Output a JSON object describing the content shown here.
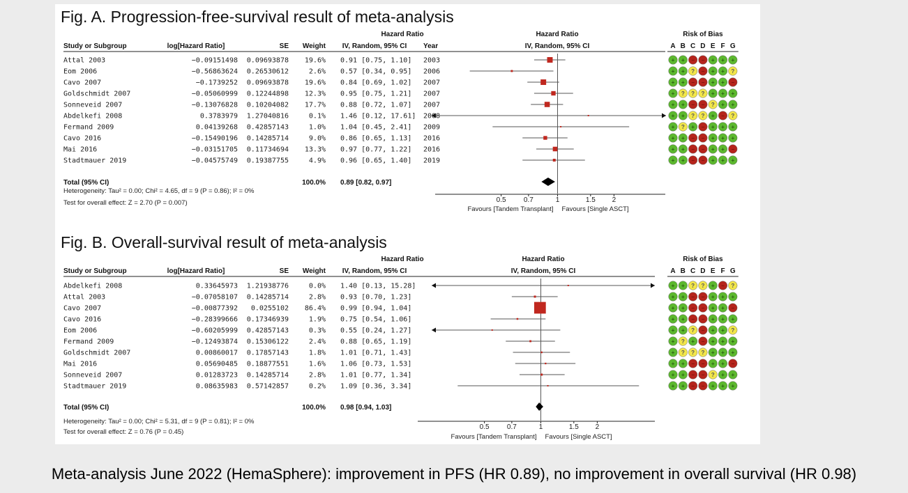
{
  "caption": "Meta-analysis June 2022 (HemaSphere): improvement in PFS (HR 0.89), no improvement in overall survival (HR 0.98)",
  "headers": {
    "study": "Study or Subgroup",
    "loghr": "log[Hazard Ratio]",
    "se": "SE",
    "weight": "Weight",
    "hr_top": "Hazard Ratio",
    "hr_method": "IV, Random, 95% CI",
    "year": "Year",
    "plot_top": "Hazard Ratio",
    "plot_method": "IV, Random, 95% CI",
    "bias_title": "Risk of Bias",
    "bias_letters": [
      "A",
      "B",
      "C",
      "D",
      "E",
      "F",
      "G"
    ]
  },
  "colors": {
    "low": "#5cb82e",
    "unclear": "#f2e64a",
    "high": "#b5241c",
    "marker": "#c0281f",
    "line": "#555555"
  },
  "chart_data": [
    {
      "type": "forest",
      "title": "Fig. A. Progression-free-survival result of meta-analysis",
      "has_year": true,
      "axis": {
        "scale": "log",
        "ticks": [
          "0.5",
          "0.7",
          "1",
          "1.5",
          "2"
        ],
        "tick_values": [
          0.5,
          0.7,
          1,
          1.5,
          2
        ],
        "xlim": [
          0.3,
          3.6
        ],
        "left_label": "Favours [Tandem Transplant]",
        "right_label": "Favours [Single ASCT]"
      },
      "studies": [
        {
          "name": "Attal 2003",
          "loghr": "−0.09151498",
          "se": "0.09693878",
          "weight": "19.6%",
          "ci_text": "0.91 [0.75, 1.10]",
          "year": "2003",
          "hr": 0.91,
          "lo": 0.75,
          "hi": 1.1,
          "w": 19.6,
          "bias": [
            "low",
            "low",
            "high",
            "high",
            "low",
            "low",
            "low"
          ]
        },
        {
          "name": "Eom 2006",
          "loghr": "−0.56863624",
          "se": "0.26530612",
          "weight": "2.6%",
          "ci_text": "0.57 [0.34, 0.95]",
          "year": "2006",
          "hr": 0.57,
          "lo": 0.34,
          "hi": 0.95,
          "w": 2.6,
          "bias": [
            "low",
            "low",
            "unclear",
            "high",
            "low",
            "low",
            "unclear"
          ]
        },
        {
          "name": "Cavo 2007",
          "loghr": "−0.1739252",
          "se": "0.09693878",
          "weight": "19.6%",
          "ci_text": "0.84 [0.69, 1.02]",
          "year": "2007",
          "hr": 0.84,
          "lo": 0.69,
          "hi": 1.02,
          "w": 19.6,
          "bias": [
            "low",
            "low",
            "high",
            "high",
            "low",
            "low",
            "high"
          ]
        },
        {
          "name": "Goldschmidt 2007",
          "loghr": "−0.05060999",
          "se": "0.12244898",
          "weight": "12.3%",
          "ci_text": "0.95 [0.75, 1.21]",
          "year": "2007",
          "hr": 0.95,
          "lo": 0.75,
          "hi": 1.21,
          "w": 12.3,
          "bias": [
            "low",
            "unclear",
            "unclear",
            "unclear",
            "low",
            "low",
            "low"
          ]
        },
        {
          "name": "Sonneveid 2007",
          "loghr": "−0.13076828",
          "se": "0.10204082",
          "weight": "17.7%",
          "ci_text": "0.88 [0.72, 1.07]",
          "year": "2007",
          "hr": 0.88,
          "lo": 0.72,
          "hi": 1.07,
          "w": 17.7,
          "bias": [
            "low",
            "low",
            "high",
            "high",
            "unclear",
            "low",
            "low"
          ]
        },
        {
          "name": "Abdelkefi 2008",
          "loghr": "0.3783979",
          "se": "1.27040816",
          "weight": "0.1%",
          "ci_text": "1.46 [0.12, 17.61]",
          "year": "2008",
          "hr": 1.46,
          "lo": 0.12,
          "hi": 17.61,
          "w": 0.1,
          "bias": [
            "low",
            "low",
            "unclear",
            "unclear",
            "low",
            "high",
            "unclear"
          ]
        },
        {
          "name": "Fermand 2009",
          "loghr": "0.04139268",
          "se": "0.42857143",
          "weight": "1.0%",
          "ci_text": "1.04 [0.45, 2.41]",
          "year": "2009",
          "hr": 1.04,
          "lo": 0.45,
          "hi": 2.41,
          "w": 1.0,
          "bias": [
            "low",
            "unclear",
            "low",
            "high",
            "low",
            "low",
            "low"
          ]
        },
        {
          "name": "Cavo 2016",
          "loghr": "−0.15490196",
          "se": "0.14285714",
          "weight": "9.0%",
          "ci_text": "0.86 [0.65, 1.13]",
          "year": "2016",
          "hr": 0.86,
          "lo": 0.65,
          "hi": 1.13,
          "w": 9.0,
          "bias": [
            "low",
            "low",
            "high",
            "high",
            "low",
            "low",
            "low"
          ]
        },
        {
          "name": "Mai 2016",
          "loghr": "−0.03151705",
          "se": "0.11734694",
          "weight": "13.3%",
          "ci_text": "0.97 [0.77, 1.22]",
          "year": "2016",
          "hr": 0.97,
          "lo": 0.77,
          "hi": 1.22,
          "w": 13.3,
          "bias": [
            "low",
            "low",
            "high",
            "high",
            "low",
            "low",
            "high"
          ]
        },
        {
          "name": "Stadtmauer 2019",
          "loghr": "−0.04575749",
          "se": "0.19387755",
          "weight": "4.9%",
          "ci_text": "0.96 [0.65, 1.40]",
          "year": "2019",
          "hr": 0.96,
          "lo": 0.65,
          "hi": 1.4,
          "w": 4.9,
          "bias": [
            "low",
            "low",
            "high",
            "high",
            "low",
            "low",
            "low"
          ]
        }
      ],
      "total": {
        "label": "Total (95% CI)",
        "weight": "100.0%",
        "ci_text": "0.89 [0.82, 0.97]",
        "hr": 0.89,
        "lo": 0.82,
        "hi": 0.97
      },
      "heterogeneity": "Heterogeneity: Tau² = 0.00; Chi² = 4.65, df = 9 (P = 0.86); I² = 0%",
      "overall_effect": "Test for overall effect: Z = 2.70 (P = 0.007)"
    },
    {
      "type": "forest",
      "title": "Fig. B. Overall-survival result of meta-analysis",
      "has_year": false,
      "axis": {
        "scale": "log",
        "ticks": [
          "0.5",
          "0.7",
          "1",
          "1.5",
          "2"
        ],
        "tick_values": [
          0.5,
          0.7,
          1,
          1.5,
          2
        ],
        "xlim": [
          0.3,
          3.6
        ],
        "left_label": "Favours [Tandem Transplant]",
        "right_label": "Favours [Single ASCT]"
      },
      "studies": [
        {
          "name": "Abdelkefi 2008",
          "loghr": "0.33645973",
          "se": "1.21938776",
          "weight": "0.0%",
          "ci_text": "1.40 [0.13, 15.28]",
          "hr": 1.4,
          "lo": 0.13,
          "hi": 15.28,
          "w": 0.0,
          "bias": [
            "low",
            "low",
            "unclear",
            "unclear",
            "low",
            "high",
            "unclear"
          ]
        },
        {
          "name": "Attal 2003",
          "loghr": "−0.07058107",
          "se": "0.14285714",
          "weight": "2.8%",
          "ci_text": "0.93 [0.70, 1.23]",
          "hr": 0.93,
          "lo": 0.7,
          "hi": 1.23,
          "w": 2.8,
          "bias": [
            "low",
            "low",
            "high",
            "high",
            "low",
            "low",
            "low"
          ]
        },
        {
          "name": "Cavo 2007",
          "loghr": "−0.00877392",
          "se": "0.0255102",
          "weight": "86.4%",
          "ci_text": "0.99 [0.94, 1.04]",
          "hr": 0.99,
          "lo": 0.94,
          "hi": 1.04,
          "w": 86.4,
          "bias": [
            "low",
            "low",
            "high",
            "high",
            "low",
            "low",
            "high"
          ]
        },
        {
          "name": "Cavo 2016",
          "loghr": "−0.28399666",
          "se": "0.17346939",
          "weight": "1.9%",
          "ci_text": "0.75 [0.54, 1.06]",
          "hr": 0.75,
          "lo": 0.54,
          "hi": 1.06,
          "w": 1.9,
          "bias": [
            "low",
            "low",
            "high",
            "high",
            "low",
            "low",
            "low"
          ]
        },
        {
          "name": "Eom 2006",
          "loghr": "−0.60205999",
          "se": "0.42857143",
          "weight": "0.3%",
          "ci_text": "0.55 [0.24, 1.27]",
          "hr": 0.55,
          "lo": 0.24,
          "hi": 1.27,
          "w": 0.3,
          "bias": [
            "low",
            "low",
            "unclear",
            "high",
            "low",
            "low",
            "unclear"
          ]
        },
        {
          "name": "Fermand 2009",
          "loghr": "−0.12493874",
          "se": "0.15306122",
          "weight": "2.4%",
          "ci_text": "0.88 [0.65, 1.19]",
          "hr": 0.88,
          "lo": 0.65,
          "hi": 1.19,
          "w": 2.4,
          "bias": [
            "low",
            "unclear",
            "low",
            "high",
            "low",
            "low",
            "low"
          ]
        },
        {
          "name": "Goldschmidt 2007",
          "loghr": "0.00860017",
          "se": "0.17857143",
          "weight": "1.8%",
          "ci_text": "1.01 [0.71, 1.43]",
          "hr": 1.01,
          "lo": 0.71,
          "hi": 1.43,
          "w": 1.8,
          "bias": [
            "low",
            "unclear",
            "unclear",
            "unclear",
            "low",
            "low",
            "low"
          ]
        },
        {
          "name": "Mai 2016",
          "loghr": "0.05690485",
          "se": "0.18877551",
          "weight": "1.6%",
          "ci_text": "1.06 [0.73, 1.53]",
          "hr": 1.06,
          "lo": 0.73,
          "hi": 1.53,
          "w": 1.6,
          "bias": [
            "low",
            "low",
            "high",
            "high",
            "low",
            "low",
            "high"
          ]
        },
        {
          "name": "Sonneveid 2007",
          "loghr": "0.01283723",
          "se": "0.14285714",
          "weight": "2.8%",
          "ci_text": "1.01 [0.77, 1.34]",
          "hr": 1.01,
          "lo": 0.77,
          "hi": 1.34,
          "w": 2.8,
          "bias": [
            "low",
            "low",
            "high",
            "high",
            "unclear",
            "low",
            "low"
          ]
        },
        {
          "name": "Stadtmauer 2019",
          "loghr": "0.08635983",
          "se": "0.57142857",
          "weight": "0.2%",
          "ci_text": "1.09 [0.36, 3.34]",
          "hr": 1.09,
          "lo": 0.36,
          "hi": 3.34,
          "w": 0.2,
          "bias": [
            "low",
            "low",
            "high",
            "high",
            "low",
            "low",
            "low"
          ]
        }
      ],
      "total": {
        "label": "Total (95% CI)",
        "weight": "100.0%",
        "ci_text": "0.98 [0.94, 1.03]",
        "hr": 0.98,
        "lo": 0.94,
        "hi": 1.03
      },
      "heterogeneity": "Heterogeneity: Tau² = 0.00; Chi² = 5.31, df = 9 (P = 0.81); I² = 0%",
      "overall_effect": "Test for overall effect: Z = 0.76 (P = 0.45)"
    }
  ]
}
